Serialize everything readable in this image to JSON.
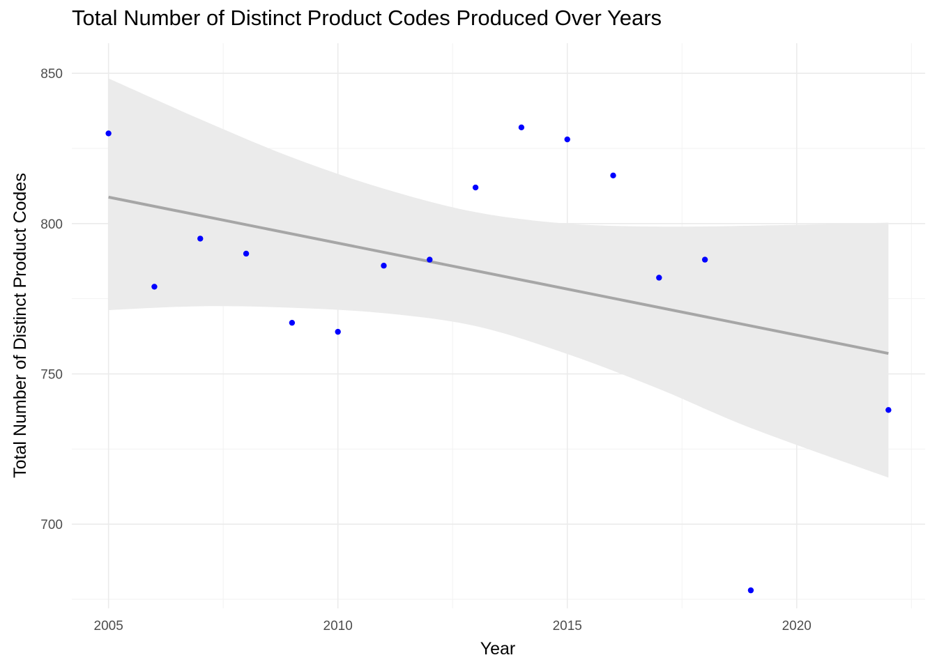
{
  "chart_data": {
    "type": "scatter",
    "title": "Total Number of Distinct Product Codes Produced Over Years",
    "xlabel": "Year",
    "ylabel": "Total Number of Distinct Product Codes",
    "xlim": [
      2004.2,
      2022.8
    ],
    "ylim": [
      672,
      860
    ],
    "x_ticks": [
      2005,
      2010,
      2015,
      2020
    ],
    "y_ticks": [
      700,
      750,
      800,
      850
    ],
    "grid": true,
    "point_color": "#0000ff",
    "series": [
      {
        "x": [
          2005,
          2006,
          2007,
          2008,
          2009,
          2010,
          2011,
          2012,
          2013,
          2014,
          2015,
          2016,
          2017,
          2018,
          2019,
          2022
        ],
        "y": [
          830,
          779,
          795,
          790,
          767,
          764,
          786,
          788,
          812,
          832,
          828,
          816,
          782,
          788,
          678,
          738
        ]
      }
    ],
    "trend_line": {
      "method": "linear regression",
      "color": "#a6a6a6",
      "x": [
        2005,
        2022
      ],
      "y": [
        808.8,
        756.8
      ]
    },
    "confidence_band": {
      "color": "#ebebeb",
      "x": [
        2005,
        2007,
        2009,
        2011,
        2013,
        2015,
        2017,
        2019,
        2022
      ],
      "lower": [
        771.2,
        772.5,
        772.0,
        770.2,
        765.9,
        756.6,
        745.0,
        732.0,
        715.5
      ],
      "upper": [
        848.3,
        834.7,
        822.0,
        811.6,
        803.8,
        800.0,
        799.0,
        799.3,
        800.3
      ]
    }
  }
}
